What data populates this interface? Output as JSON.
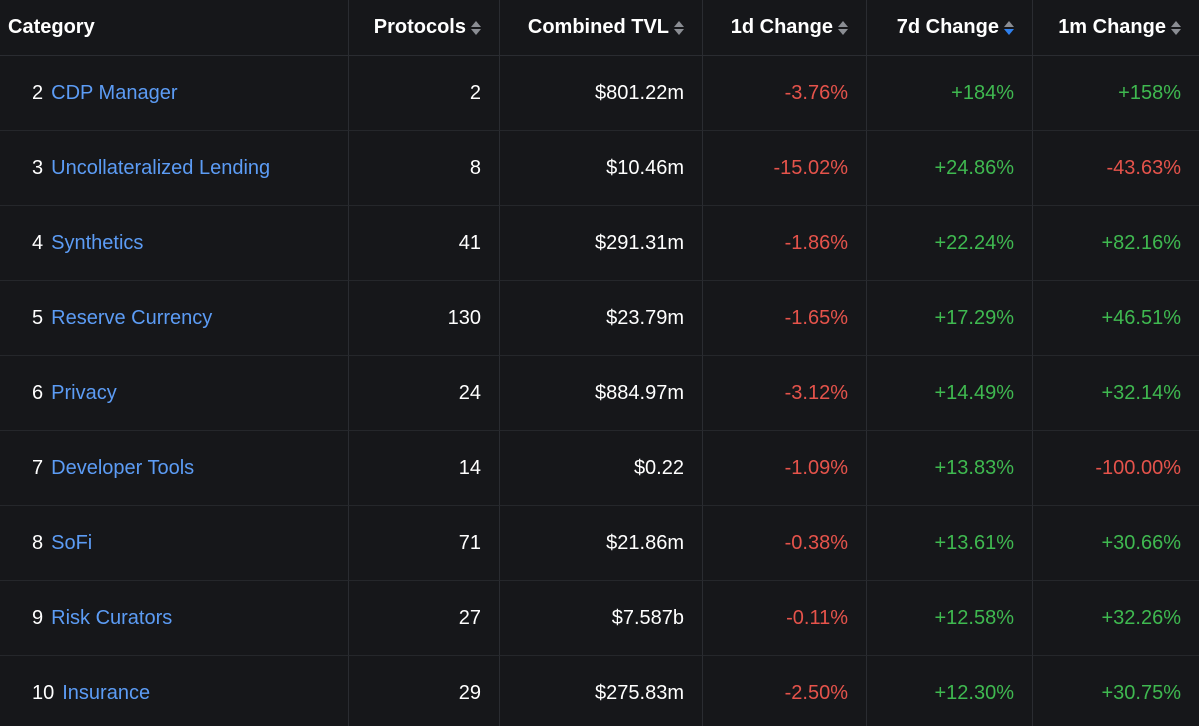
{
  "headers": {
    "category": "Category",
    "protocols": "Protocols",
    "tvl": "Combined TVL",
    "change_1d": "1d Change",
    "change_7d": "7d Change",
    "change_1m": "1m Change"
  },
  "sort": {
    "column": "change_7d",
    "direction": "desc",
    "active_color": "#2f80ed"
  },
  "colors": {
    "link": "#5c9cf5",
    "negative": "#e5534b",
    "positive": "#3fb950",
    "background": "#16171a"
  },
  "rows": [
    {
      "rank": "2",
      "name": "CDP Manager",
      "protocols": "2",
      "tvl": "$801.22m",
      "change_1d": "-3.76%",
      "change_7d": "+184%",
      "change_1m": "+158%"
    },
    {
      "rank": "3",
      "name": "Uncollateralized Lending",
      "protocols": "8",
      "tvl": "$10.46m",
      "change_1d": "-15.02%",
      "change_7d": "+24.86%",
      "change_1m": "-43.63%"
    },
    {
      "rank": "4",
      "name": "Synthetics",
      "protocols": "41",
      "tvl": "$291.31m",
      "change_1d": "-1.86%",
      "change_7d": "+22.24%",
      "change_1m": "+82.16%"
    },
    {
      "rank": "5",
      "name": "Reserve Currency",
      "protocols": "130",
      "tvl": "$23.79m",
      "change_1d": "-1.65%",
      "change_7d": "+17.29%",
      "change_1m": "+46.51%"
    },
    {
      "rank": "6",
      "name": "Privacy",
      "protocols": "24",
      "tvl": "$884.97m",
      "change_1d": "-3.12%",
      "change_7d": "+14.49%",
      "change_1m": "+32.14%"
    },
    {
      "rank": "7",
      "name": "Developer Tools",
      "protocols": "14",
      "tvl": "$0.22",
      "change_1d": "-1.09%",
      "change_7d": "+13.83%",
      "change_1m": "-100.00%"
    },
    {
      "rank": "8",
      "name": "SoFi",
      "protocols": "71",
      "tvl": "$21.86m",
      "change_1d": "-0.38%",
      "change_7d": "+13.61%",
      "change_1m": "+30.66%"
    },
    {
      "rank": "9",
      "name": "Risk Curators",
      "protocols": "27",
      "tvl": "$7.587b",
      "change_1d": "-0.11%",
      "change_7d": "+12.58%",
      "change_1m": "+32.26%"
    },
    {
      "rank": "10",
      "name": "Insurance",
      "protocols": "29",
      "tvl": "$275.83m",
      "change_1d": "-2.50%",
      "change_7d": "+12.30%",
      "change_1m": "+30.75%"
    }
  ]
}
